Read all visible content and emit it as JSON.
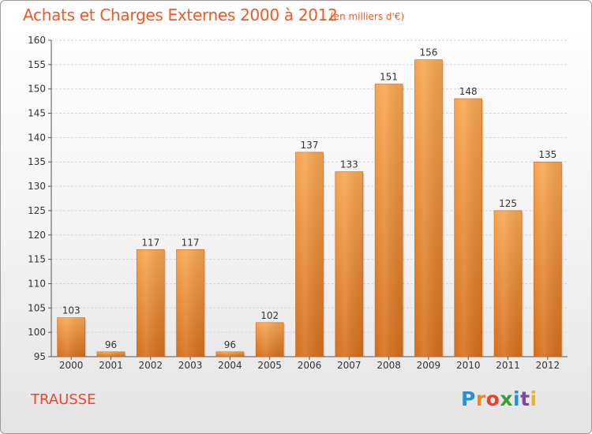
{
  "title": "Achats et Charges Externes 2000 à 2012",
  "subtitle": "(en milliers d'€)",
  "location": "TRAUSSE",
  "logo": {
    "letters": [
      "P",
      "r",
      "o",
      "x",
      "i",
      "t",
      "i"
    ],
    "colors": [
      "#2e8fd0",
      "#f08a1c",
      "#ee3e2c",
      "#3b9c38",
      "#2e8fd0",
      "#7b4aa0",
      "#e8b51e"
    ]
  },
  "colors": {
    "bar_top": "#f7a550",
    "bar_bottom": "#d46e1a",
    "title": "#ee5a24",
    "grid": "#d6d6d6",
    "axis": "#555555"
  },
  "chart_data": {
    "type": "bar",
    "title": "Achats et Charges Externes 2000 à 2012",
    "subtitle": "(en milliers d'€)",
    "categories": [
      "2000",
      "2001",
      "2002",
      "2003",
      "2004",
      "2005",
      "2006",
      "2007",
      "2008",
      "2009",
      "2010",
      "2011",
      "2012"
    ],
    "values": [
      103,
      96,
      117,
      117,
      96,
      102,
      137,
      133,
      151,
      156,
      148,
      125,
      135
    ],
    "value_labels": [
      "103",
      "96",
      "117",
      "117",
      "96",
      "102",
      "137",
      "133",
      "151",
      "156",
      "148",
      "125",
      "135"
    ],
    "ylim": [
      95,
      160
    ],
    "yticks": [
      "95",
      "100",
      "105",
      "110",
      "115",
      "120",
      "125",
      "130",
      "135",
      "140",
      "145",
      "150",
      "155",
      "160"
    ],
    "grid": true,
    "legend": "none"
  }
}
